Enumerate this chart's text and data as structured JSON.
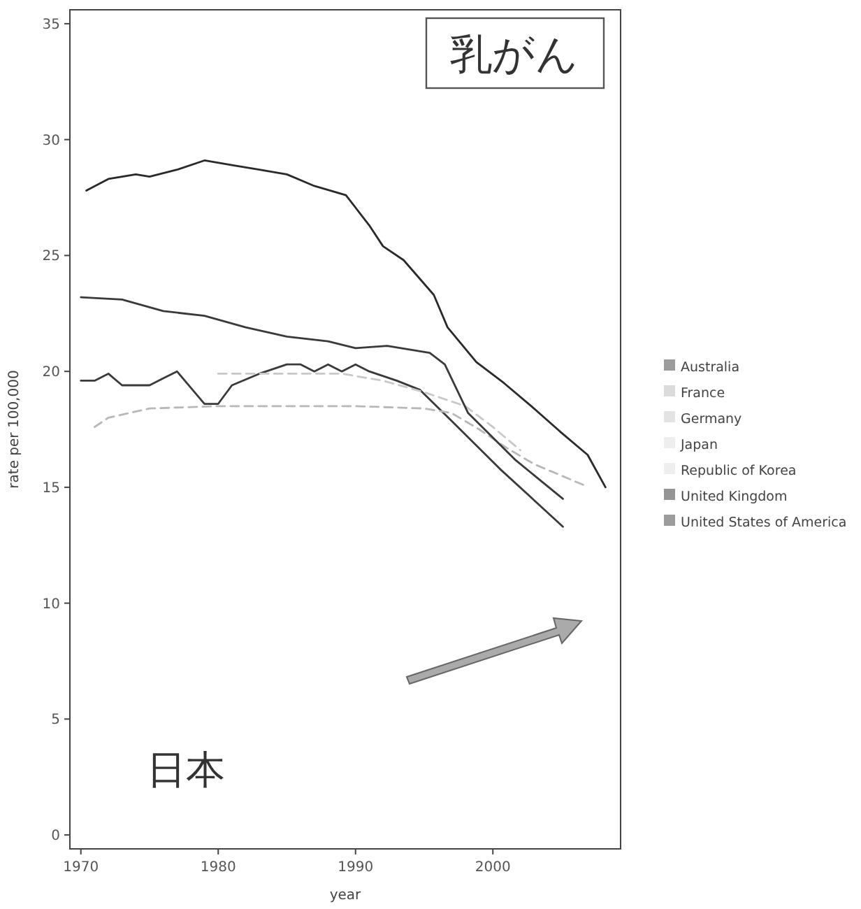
{
  "chart_data": {
    "type": "line",
    "xlabel": "year",
    "ylabel": "rate per 100,000",
    "xlim": [
      1969.2,
      2009.3
    ],
    "ylim": [
      -0.6,
      35.6
    ],
    "xticks": [
      1970,
      1980,
      1990,
      2000
    ],
    "yticks": [
      0,
      5,
      10,
      15,
      20,
      25,
      30,
      35
    ],
    "grid": false,
    "legend": "right",
    "marker": "none",
    "annotations": [
      "乳がん",
      "日本"
    ],
    "series": [
      {
        "name": "Australia",
        "color": "#3a3a3a",
        "line_style": "solid",
        "x": [
          1970,
          1971,
          1972,
          1973,
          1975,
          1976,
          1977,
          1978,
          1979,
          1980,
          1981,
          1983,
          1985,
          1986,
          1987,
          1988,
          1989,
          1990,
          1991,
          1993,
          1994.7,
          1997.1,
          2000.5,
          2005.1
        ],
        "values": [
          19.6,
          19.6,
          19.9,
          19.4,
          19.4,
          19.7,
          20.0,
          19.3,
          18.6,
          18.6,
          19.4,
          19.9,
          20.3,
          20.3,
          20.0,
          20.3,
          20.0,
          20.3,
          20.0,
          19.6,
          19.2,
          17.8,
          15.8,
          13.3
        ]
      },
      {
        "name": "France",
        "color": "#b8b8b8",
        "line_style": "dashed",
        "x": [
          1971,
          1972,
          1975,
          1980,
          1985,
          1990,
          1995,
          1997,
          1999,
          2001,
          2003,
          2006.6
        ],
        "values": [
          17.6,
          18.0,
          18.4,
          18.5,
          18.5,
          18.5,
          18.4,
          18.2,
          17.5,
          16.7,
          16.0,
          15.1
        ]
      },
      {
        "name": "Germany",
        "color": "#c8c8c8",
        "line_style": "dashed",
        "x": [
          1980,
          1984,
          1989,
          1992,
          1995,
          1998,
          2000,
          2002
        ],
        "values": [
          19.9,
          19.9,
          19.9,
          19.6,
          19.1,
          18.5,
          17.6,
          16.6
        ]
      },
      {
        "name": "Japan",
        "color": "#dddddd"
      },
      {
        "name": "Republic of Korea",
        "color": "#dddddd"
      },
      {
        "name": "United Kingdom",
        "color": "#2a2a2a",
        "line_style": "solid",
        "x": [
          1970.4,
          1972,
          1974,
          1975,
          1977,
          1979,
          1981,
          1983,
          1985,
          1987,
          1989.3,
          1991,
          1992,
          1993.5,
          1995.7,
          1996.7,
          1998.8,
          2000.8,
          2002.8,
          2004.9,
          2006.9,
          2008.2
        ],
        "values": [
          27.8,
          28.3,
          28.5,
          28.4,
          28.7,
          29.1,
          28.9,
          28.7,
          28.5,
          28.0,
          27.6,
          26.3,
          25.4,
          24.8,
          23.3,
          21.9,
          20.4,
          19.5,
          18.5,
          17.4,
          16.4,
          15.0
        ]
      },
      {
        "name": "United States of America",
        "color": "#3a3a3a",
        "line_style": "solid",
        "x": [
          1970,
          1973,
          1976,
          1979,
          1982,
          1985,
          1988,
          1990,
          1992.3,
          1995.4,
          1996.5,
          1998.2,
          2001.6,
          2005.1
        ],
        "values": [
          23.2,
          23.1,
          22.6,
          22.4,
          21.9,
          21.5,
          21.3,
          21.0,
          21.1,
          20.8,
          20.3,
          18.2,
          16.2,
          14.5
        ]
      }
    ]
  }
}
